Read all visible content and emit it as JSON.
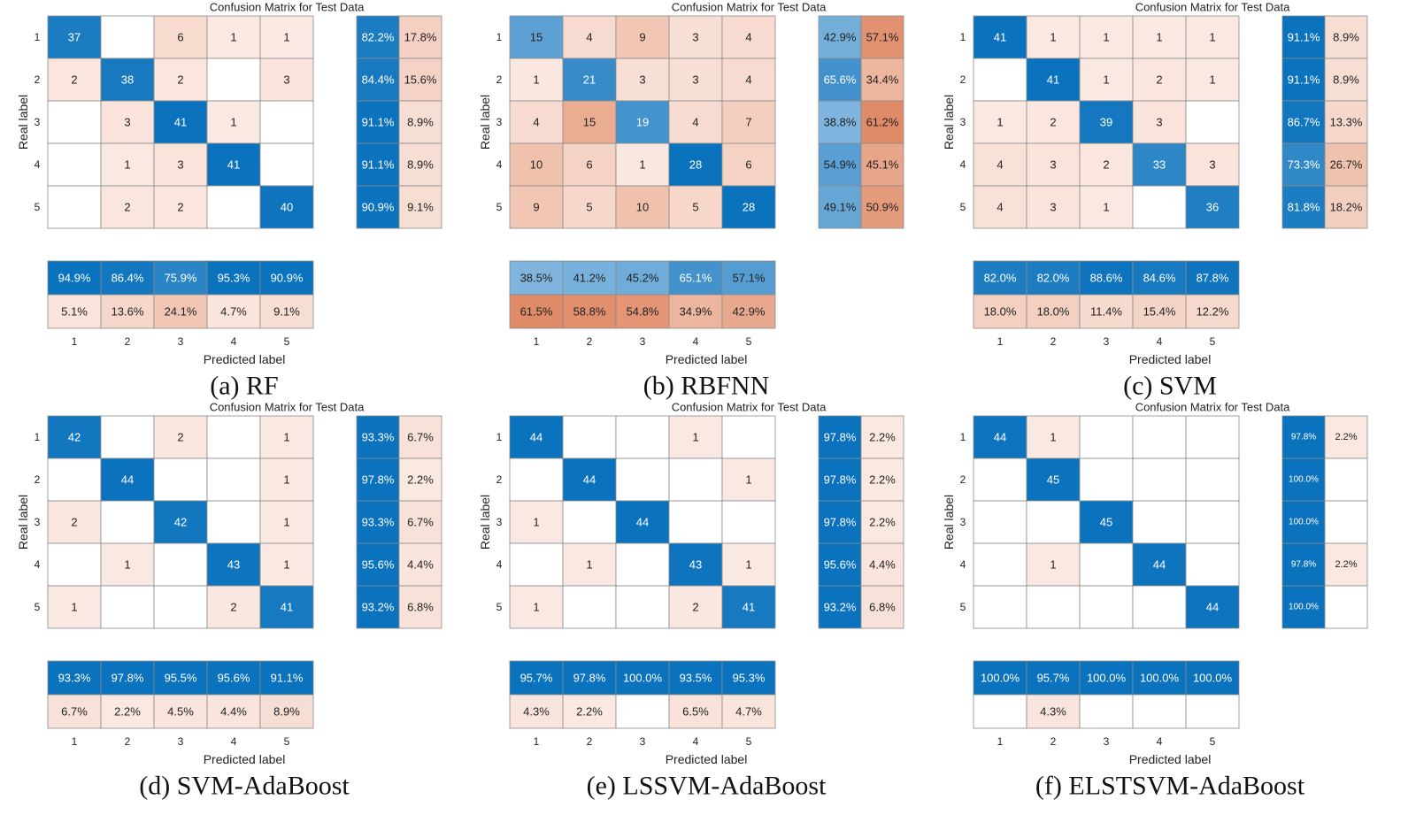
{
  "chart_data": [
    {
      "type": "heatmap",
      "title": "Confusion Matrix for Test Data",
      "caption": "(a) RF",
      "xlabel": "Predicted label",
      "ylabel": "Real label",
      "labels": [
        "1",
        "2",
        "3",
        "4",
        "5"
      ],
      "matrix": [
        [
          37,
          null,
          6,
          1,
          1
        ],
        [
          2,
          38,
          2,
          null,
          3
        ],
        [
          null,
          3,
          41,
          1,
          null
        ],
        [
          null,
          1,
          3,
          41,
          null
        ],
        [
          null,
          2,
          2,
          null,
          40
        ]
      ],
      "row_summary": [
        [
          "82.2%",
          "17.8%"
        ],
        [
          "84.4%",
          "15.6%"
        ],
        [
          "91.1%",
          "8.9%"
        ],
        [
          "91.1%",
          "8.9%"
        ],
        [
          "90.9%",
          "9.1%"
        ]
      ],
      "col_summary": [
        [
          "94.9%",
          "86.4%",
          "75.9%",
          "95.3%",
          "90.9%"
        ],
        [
          "5.1%",
          "13.6%",
          "24.1%",
          "4.7%",
          "9.1%"
        ]
      ]
    },
    {
      "type": "heatmap",
      "title": "Confusion Matrix for Test Data",
      "caption": "(b) RBFNN",
      "xlabel": "Predicted label",
      "ylabel": "Real label",
      "labels": [
        "1",
        "2",
        "3",
        "4",
        "5"
      ],
      "matrix": [
        [
          15,
          4,
          9,
          3,
          4
        ],
        [
          1,
          21,
          3,
          3,
          4
        ],
        [
          4,
          15,
          19,
          4,
          7
        ],
        [
          10,
          6,
          1,
          28,
          6
        ],
        [
          9,
          5,
          10,
          5,
          28
        ]
      ],
      "row_summary": [
        [
          "42.9%",
          "57.1%"
        ],
        [
          "65.6%",
          "34.4%"
        ],
        [
          "38.8%",
          "61.2%"
        ],
        [
          "54.9%",
          "45.1%"
        ],
        [
          "49.1%",
          "50.9%"
        ]
      ],
      "col_summary": [
        [
          "38.5%",
          "41.2%",
          "45.2%",
          "65.1%",
          "57.1%"
        ],
        [
          "61.5%",
          "58.8%",
          "54.8%",
          "34.9%",
          "42.9%"
        ]
      ]
    },
    {
      "type": "heatmap",
      "title": "Confusion Matrix for Test Data",
      "caption": "(c) SVM",
      "xlabel": "Predicted label",
      "ylabel": "Real label",
      "labels": [
        "1",
        "2",
        "3",
        "4",
        "5"
      ],
      "matrix": [
        [
          41,
          1,
          1,
          1,
          1
        ],
        [
          null,
          41,
          1,
          2,
          1
        ],
        [
          1,
          2,
          39,
          3,
          null
        ],
        [
          4,
          3,
          2,
          33,
          3
        ],
        [
          4,
          3,
          1,
          null,
          36
        ]
      ],
      "row_summary": [
        [
          "91.1%",
          "8.9%"
        ],
        [
          "91.1%",
          "8.9%"
        ],
        [
          "86.7%",
          "13.3%"
        ],
        [
          "73.3%",
          "26.7%"
        ],
        [
          "81.8%",
          "18.2%"
        ]
      ],
      "col_summary": [
        [
          "82.0%",
          "82.0%",
          "88.6%",
          "84.6%",
          "87.8%"
        ],
        [
          "18.0%",
          "18.0%",
          "11.4%",
          "15.4%",
          "12.2%"
        ]
      ]
    },
    {
      "type": "heatmap",
      "title": "Confusion Matrix for Test Data",
      "caption": "(d) SVM-AdaBoost",
      "xlabel": "Predicted label",
      "ylabel": "Real label",
      "labels": [
        "1",
        "2",
        "3",
        "4",
        "5"
      ],
      "matrix": [
        [
          42,
          null,
          2,
          null,
          1
        ],
        [
          null,
          44,
          null,
          null,
          1
        ],
        [
          2,
          null,
          42,
          null,
          1
        ],
        [
          null,
          1,
          null,
          43,
          1
        ],
        [
          1,
          null,
          null,
          2,
          41
        ]
      ],
      "row_summary": [
        [
          "93.3%",
          "6.7%"
        ],
        [
          "97.8%",
          "2.2%"
        ],
        [
          "93.3%",
          "6.7%"
        ],
        [
          "95.6%",
          "4.4%"
        ],
        [
          "93.2%",
          "6.8%"
        ]
      ],
      "col_summary": [
        [
          "93.3%",
          "97.8%",
          "95.5%",
          "95.6%",
          "91.1%"
        ],
        [
          "6.7%",
          "2.2%",
          "4.5%",
          "4.4%",
          "8.9%"
        ]
      ]
    },
    {
      "type": "heatmap",
      "title": "Confusion Matrix for Test Data",
      "caption": "(e) LSSVM-AdaBoost",
      "xlabel": "Predicted label",
      "ylabel": "Real label",
      "labels": [
        "1",
        "2",
        "3",
        "4",
        "5"
      ],
      "matrix": [
        [
          44,
          null,
          null,
          1,
          null
        ],
        [
          null,
          44,
          null,
          null,
          1
        ],
        [
          1,
          null,
          44,
          null,
          null
        ],
        [
          null,
          1,
          null,
          43,
          1
        ],
        [
          1,
          null,
          null,
          2,
          41
        ]
      ],
      "row_summary": [
        [
          "97.8%",
          "2.2%"
        ],
        [
          "97.8%",
          "2.2%"
        ],
        [
          "97.8%",
          "2.2%"
        ],
        [
          "95.6%",
          "4.4%"
        ],
        [
          "93.2%",
          "6.8%"
        ]
      ],
      "col_summary": [
        [
          "95.7%",
          "97.8%",
          "100.0%",
          "93.5%",
          "95.3%"
        ],
        [
          "4.3%",
          "2.2%",
          "",
          "6.5%",
          "4.7%"
        ]
      ]
    },
    {
      "type": "heatmap",
      "title": "Confusion Matrix for Test Data",
      "caption": "(f) ELSTSVM-AdaBoost",
      "xlabel": "Predicted label",
      "ylabel": "Real label",
      "labels": [
        "1",
        "2",
        "3",
        "4",
        "5"
      ],
      "matrix": [
        [
          44,
          1,
          null,
          null,
          null
        ],
        [
          null,
          45,
          null,
          null,
          null
        ],
        [
          null,
          null,
          45,
          null,
          null
        ],
        [
          null,
          1,
          null,
          44,
          null
        ],
        [
          null,
          null,
          null,
          null,
          44
        ]
      ],
      "row_summary": [
        [
          "97.8%",
          "2.2%"
        ],
        [
          "100.0%",
          ""
        ],
        [
          "100.0%",
          ""
        ],
        [
          "97.8%",
          "2.2%"
        ],
        [
          "100.0%",
          ""
        ]
      ],
      "col_summary": [
        [
          "100.0%",
          "95.7%",
          "100.0%",
          "100.0%",
          "100.0%"
        ],
        [
          "",
          "4.3%",
          "",
          "",
          ""
        ]
      ]
    }
  ]
}
